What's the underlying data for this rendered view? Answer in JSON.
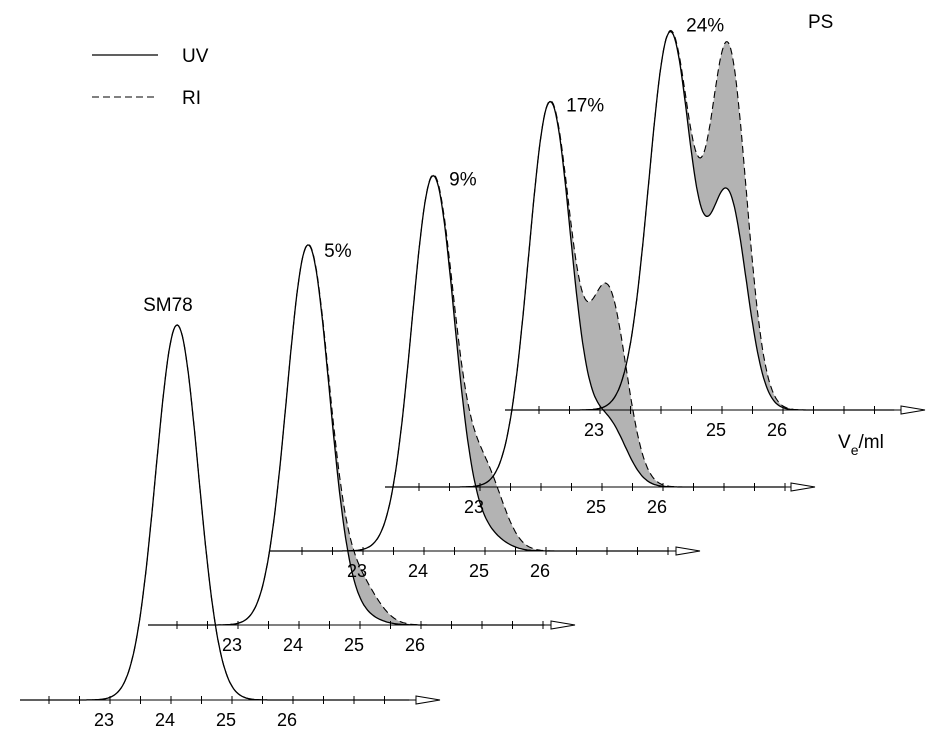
{
  "chart_data": {
    "type": "line",
    "title": "",
    "xlabel": "V",
    "xlabel_sub": "e",
    "xlabel_unit": "/ml",
    "legend": {
      "placement": "top-left",
      "entries": [
        {
          "name": "UV",
          "style": "solid"
        },
        {
          "name": "RI",
          "style": "dashed"
        }
      ]
    },
    "grid": false,
    "xlim": [
      22.0,
      27.5
    ],
    "traces": [
      {
        "label": "SM78",
        "ticks": [
          "23",
          "24",
          "25",
          "26"
        ],
        "uv_peaks": [
          {
            "x": 24.1,
            "height": 1.0,
            "width": 0.35
          }
        ],
        "ri_peaks": [
          {
            "x": 24.1,
            "height": 1.0,
            "width": 0.35
          }
        ]
      },
      {
        "label": "5%",
        "ticks": [
          "23",
          "24",
          "25",
          "26"
        ],
        "uv_peaks": [
          {
            "x": 24.15,
            "height": 1.0,
            "width": 0.35
          },
          {
            "x": 25.0,
            "height": 0.02,
            "width": 0.3
          }
        ],
        "ri_peaks": [
          {
            "x": 24.15,
            "height": 1.0,
            "width": 0.35
          },
          {
            "x": 25.0,
            "height": 0.1,
            "width": 0.3
          }
        ]
      },
      {
        "label": "9%",
        "ticks": [
          "23",
          "24",
          "25",
          "26"
        ],
        "uv_peaks": [
          {
            "x": 24.15,
            "height": 1.0,
            "width": 0.35
          },
          {
            "x": 25.0,
            "height": 0.04,
            "width": 0.3
          }
        ],
        "ri_peaks": [
          {
            "x": 24.15,
            "height": 1.0,
            "width": 0.35
          },
          {
            "x": 25.0,
            "height": 0.2,
            "width": 0.3
          }
        ]
      },
      {
        "label": "17%",
        "ticks": [
          "23",
          "25",
          "26"
        ],
        "uv_peaks": [
          {
            "x": 24.15,
            "height": 1.0,
            "width": 0.35
          },
          {
            "x": 25.1,
            "height": 0.16,
            "width": 0.3
          }
        ],
        "ri_peaks": [
          {
            "x": 24.15,
            "height": 1.0,
            "width": 0.35
          },
          {
            "x": 25.1,
            "height": 0.5,
            "width": 0.3
          }
        ]
      },
      {
        "label": "24%",
        "ticks": [
          "23",
          "25",
          "26"
        ],
        "uv_peaks": [
          {
            "x": 24.15,
            "height": 1.0,
            "width": 0.35
          },
          {
            "x": 25.1,
            "height": 0.56,
            "width": 0.3
          }
        ],
        "ri_peaks": [
          {
            "x": 24.15,
            "height": 1.0,
            "width": 0.35
          },
          {
            "x": 25.1,
            "height": 0.95,
            "width": 0.3
          }
        ]
      }
    ],
    "annotations": [
      "PS"
    ],
    "shading": "area between UV and RI curves shaded grey"
  }
}
